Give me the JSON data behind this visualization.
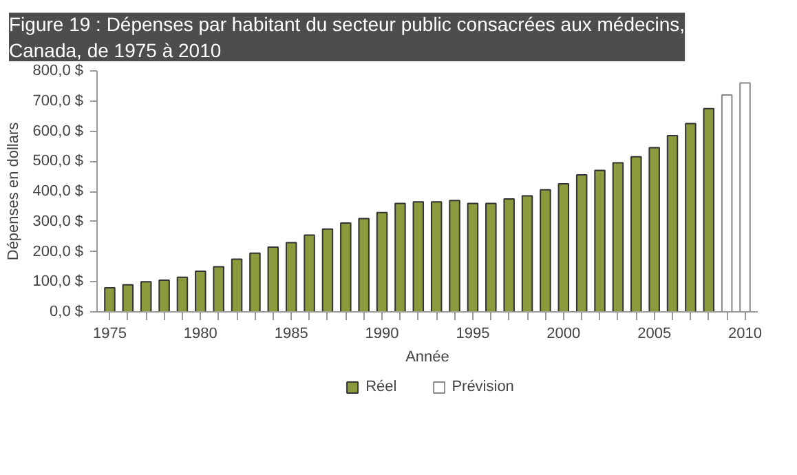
{
  "chart_data": {
    "type": "bar",
    "title": "Figure 19 : Dépenses par habitant du secteur public consacrées aux médecins,\nCanada, de 1975 à 2010",
    "xlabel": "Année",
    "ylabel": "Dépenses en dollars",
    "series": [
      {
        "name": "Réel",
        "color": "#8a9a3c",
        "x": [
          1975,
          1976,
          1977,
          1978,
          1979,
          1980,
          1981,
          1982,
          1983,
          1984,
          1985,
          1986,
          1987,
          1988,
          1989,
          1990,
          1991,
          1992,
          1993,
          1994,
          1995,
          1996,
          1997,
          1998,
          1999,
          2000,
          2001,
          2002,
          2003,
          2004,
          2005,
          2006,
          2007,
          2008
        ],
        "values": [
          80,
          90,
          100,
          105,
          115,
          135,
          150,
          175,
          195,
          215,
          230,
          255,
          275,
          295,
          310,
          330,
          360,
          365,
          365,
          370,
          360,
          360,
          375,
          385,
          405,
          425,
          455,
          470,
          495,
          515,
          545,
          585,
          625,
          675
        ]
      },
      {
        "name": "Prévision",
        "color": "#ffffff",
        "x": [
          2009,
          2010
        ],
        "values": [
          720,
          760
        ]
      }
    ],
    "xlim": [
      1974.3,
      2010.7
    ],
    "xticks": [
      1975,
      {
        "value": 1976,
        "label": null
      },
      {
        "value": 1977,
        "label": null
      },
      {
        "value": 1978,
        "label": null
      },
      {
        "value": 1979,
        "label": null
      },
      1980,
      {
        "value": 1981,
        "label": null
      },
      {
        "value": 1982,
        "label": null
      },
      {
        "value": 1983,
        "label": null
      },
      {
        "value": 1984,
        "label": null
      },
      1985,
      {
        "value": 1986,
        "label": null
      },
      {
        "value": 1987,
        "label": null
      },
      {
        "value": 1988,
        "label": null
      },
      {
        "value": 1989,
        "label": null
      },
      1990,
      {
        "value": 1991,
        "label": null
      },
      {
        "value": 1992,
        "label": null
      },
      {
        "value": 1993,
        "label": null
      },
      {
        "value": 1994,
        "label": null
      },
      1995,
      {
        "value": 1996,
        "label": null
      },
      {
        "value": 1997,
        "label": null
      },
      {
        "value": 1998,
        "label": null
      },
      {
        "value": 1999,
        "label": null
      },
      2000,
      {
        "value": 2001,
        "label": null
      },
      {
        "value": 2002,
        "label": null
      },
      {
        "value": 2003,
        "label": null
      },
      {
        "value": 2004,
        "label": null
      },
      2005,
      {
        "value": 2006,
        "label": null
      },
      {
        "value": 2007,
        "label": null
      },
      {
        "value": 2008,
        "label": null
      },
      {
        "value": 2009,
        "label": null
      },
      2010
    ],
    "ylim": [
      0,
      800
    ],
    "yticks": [
      {
        "value": 0,
        "label": "0,0 $"
      },
      {
        "value": 100,
        "label": "100,0 $"
      },
      {
        "value": 200,
        "label": "200,0 $"
      },
      {
        "value": 300,
        "label": "300,0 $"
      },
      {
        "value": 400,
        "label": "400,0 $"
      },
      {
        "value": 500,
        "label": "500,0 $"
      },
      {
        "value": 600,
        "label": "600,0 $"
      },
      {
        "value": 700,
        "label": "700,0 $"
      },
      {
        "value": 800,
        "label": "800,0 $"
      }
    ],
    "grid": false,
    "legend": "bottom"
  }
}
